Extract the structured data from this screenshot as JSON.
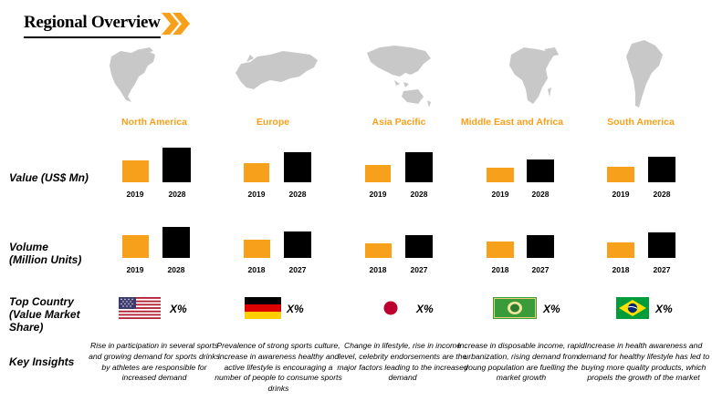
{
  "title": "Regional Overview",
  "row_labels": {
    "value": "Value (US$ Mn)",
    "volume": "Volume (Million Units)",
    "top_country": "Top Country (Value Market Share)",
    "insights": "Key Insights"
  },
  "colors": {
    "accent": "#f7a01c",
    "dark": "#000000",
    "map": "#c8c8c8"
  },
  "regions": [
    {
      "name": "North America",
      "value_years": [
        "2019",
        "2028"
      ],
      "volume_years": [
        "2019",
        "2028"
      ],
      "share": "X%",
      "flag": "usa-flag-icon",
      "insight": "Rise in participation in several sports and growing demand for sports drinks by athletes are responsible for increased demand"
    },
    {
      "name": "Europe",
      "value_years": [
        "2019",
        "2028"
      ],
      "volume_years": [
        "2018",
        "2027"
      ],
      "share": "X%",
      "flag": "germany-flag-icon",
      "insight": "Prevalence of strong sports culture, increase in awareness healthy and active lifestyle is encouraging a number of people to consume sports drinks"
    },
    {
      "name": "Asia Pacific",
      "value_years": [
        "2019",
        "2028"
      ],
      "volume_years": [
        "2018",
        "2027"
      ],
      "share": "X%",
      "flag": "japan-flag-icon",
      "insight": "Change in lifestyle, rise in income level, celebrity endorsements are the major factors leading to the increased demand"
    },
    {
      "name": "Middle East and Africa",
      "value_years": [
        "2019",
        "2028"
      ],
      "volume_years": [
        "2018",
        "2027"
      ],
      "share": "X%",
      "flag": "saudi-arabia-flag-icon",
      "insight": "Increase in disposable income, rapid urbanization, rising demand from young population are fuelling the market growth"
    },
    {
      "name": "South America",
      "value_years": [
        "2019",
        "2028"
      ],
      "volume_years": [
        "2018",
        "2027"
      ],
      "share": "X%",
      "flag": "brazil-flag-icon",
      "insight": "Increase in health awareness and demand for healthy lifestyle has led to buying more quality products, which propels the growth of the market"
    }
  ]
}
